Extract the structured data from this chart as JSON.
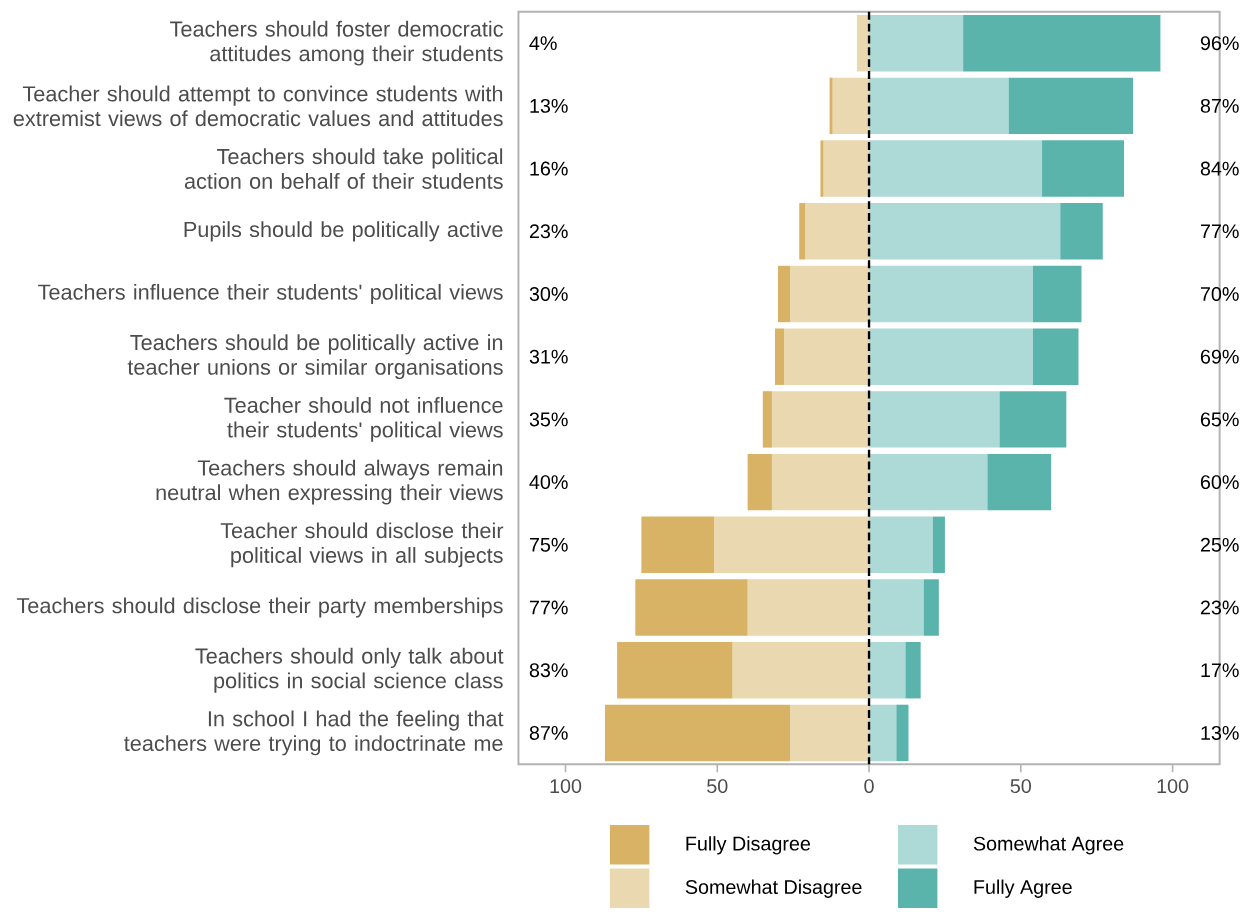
{
  "chart_data": {
    "type": "bar",
    "orientation": "horizontal",
    "stacked": true,
    "categories": [
      "Teachers should foster democratic attitudes among their students",
      "Teacher should attempt to convince students with extremist views of democratic values and attitudes",
      "Teachers should take political action on behalf of their students",
      "Pupils should be politically active",
      "Teachers influence their students' political views",
      "Teachers should be politically active in teacher unions or similar organisations",
      "Teacher should not influence their students' political views",
      "Teachers should always remain neutral when expressing their views",
      "Teacher should disclose their political views in all subjects",
      "Teachers should disclose their party memberships",
      "Teachers should only talk about politics in social science class",
      "In school I had the feeling that teachers were trying to indoctrinate me"
    ],
    "series": [
      {
        "name": "Somewhat Disagree",
        "color": "#ead9b0",
        "values": [
          -4,
          -12,
          -15,
          -21,
          -26,
          -28,
          -32,
          -32,
          -51,
          -40,
          -45,
          -26
        ]
      },
      {
        "name": "Fully Disagree",
        "color": "#d8b365",
        "values": [
          0,
          -1,
          -1,
          -2,
          -4,
          -3,
          -3,
          -8,
          -24,
          -37,
          -38,
          -61
        ]
      },
      {
        "name": "Somewhat Agree",
        "color": "#add9d6",
        "values": [
          31,
          46,
          57,
          63,
          54,
          54,
          43,
          39,
          21,
          18,
          12,
          9
        ]
      },
      {
        "name": "Fully Agree",
        "color": "#5ab4ac",
        "values": [
          65,
          41,
          27,
          14,
          16,
          15,
          22,
          21,
          4,
          5,
          5,
          4
        ]
      }
    ],
    "xlim": [
      -115.5,
      115.5
    ],
    "xticks": [
      {
        "value": -100,
        "label": "100"
      },
      {
        "value": -50,
        "label": "50"
      },
      0,
      50,
      100
    ],
    "ref_lines": [
      {
        "axis": "x",
        "value": 0,
        "color": "#000000",
        "line_style": "dashed"
      }
    ],
    "legend": "bottom",
    "annotations": [
      "4%",
      "96%",
      "13%",
      "87%",
      "16%",
      "84%",
      "23%",
      "77%",
      "30%",
      "70%",
      "31%",
      "69%",
      "35%",
      "65%",
      "40%",
      "60%",
      "75%",
      "25%",
      "77%",
      "23%",
      "83%",
      "17%",
      "87%",
      "13%"
    ]
  }
}
